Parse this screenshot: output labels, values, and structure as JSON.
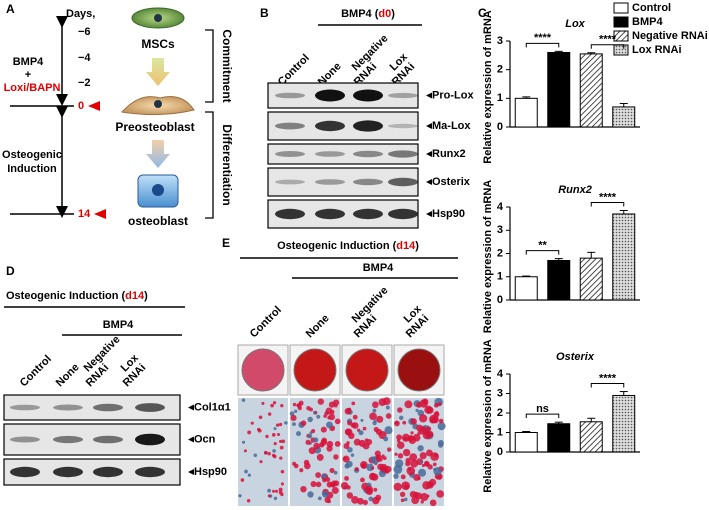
{
  "panel_a": {
    "label": "A",
    "days_title": "Days,",
    "days": [
      "−6",
      "−4",
      "−2",
      "0",
      "14"
    ],
    "treatment": [
      "BMP4",
      "+",
      "Loxi/BAPN"
    ],
    "induction": [
      "Osteogenic",
      "Induction"
    ],
    "cells": [
      "MSCs",
      "Preosteoblast",
      "osteoblast"
    ],
    "stages": [
      "Commitment",
      "Differentiation"
    ]
  },
  "panel_b": {
    "label": "B",
    "header": {
      "text": "BMP4 (",
      "highlight": "d0",
      "close": ")"
    },
    "columns": [
      [
        "Control"
      ],
      [
        "None"
      ],
      [
        "Negative",
        "RNAi"
      ],
      [
        "Lox",
        "RNAi"
      ]
    ],
    "rows": [
      "Pro-Lox",
      "Ma-Lox",
      "Runx2",
      "Osterix",
      "Hsp90"
    ]
  },
  "panel_c": {
    "label": "C",
    "legend": [
      {
        "name": "Control",
        "fill": "#ffffff"
      },
      {
        "name": "BMP4",
        "fill": "#000000"
      },
      {
        "name": "Negative RNAi",
        "fill": "hatch"
      },
      {
        "name": "Lox RNAi",
        "fill": "dots"
      }
    ]
  },
  "chart_data": [
    {
      "type": "bar",
      "title": "Lox",
      "ylabel": "Relative expression of mRNA",
      "values": [
        1.0,
        2.6,
        2.55,
        0.7
      ],
      "errors": [
        0.05,
        0.04,
        0.04,
        0.12
      ],
      "ylim": [
        0,
        3
      ],
      "yticks": [
        0,
        1,
        2,
        3
      ],
      "annotations": [
        "****",
        "****"
      ]
    },
    {
      "type": "bar",
      "title": "Runx2",
      "ylabel": "Relative expression of mRNA",
      "values": [
        1.0,
        1.7,
        1.8,
        3.7
      ],
      "errors": [
        0.03,
        0.08,
        0.25,
        0.15
      ],
      "ylim": [
        0,
        4
      ],
      "yticks": [
        0,
        1,
        2,
        3,
        4
      ],
      "annotations": [
        "**",
        "****"
      ]
    },
    {
      "type": "bar",
      "title": "Osterix",
      "ylabel": "Relative expression of mRNA",
      "values": [
        1.0,
        1.45,
        1.55,
        2.9
      ],
      "errors": [
        0.05,
        0.08,
        0.18,
        0.2
      ],
      "ylim": [
        0,
        4
      ],
      "yticks": [
        0,
        1,
        2,
        3,
        4
      ],
      "annotations": [
        "ns",
        "****"
      ]
    }
  ],
  "panel_d": {
    "label": "D",
    "header": {
      "text": "Osteogenic Induction (",
      "highlight": "d14",
      "close": ")"
    },
    "group": "BMP4",
    "columns": [
      [
        "Control"
      ],
      [
        "None"
      ],
      [
        "Negative",
        "RNAi"
      ],
      [
        "Lox",
        "RNAi"
      ]
    ],
    "rows": [
      "Col1α1",
      "Ocn",
      "Hsp90"
    ]
  },
  "panel_e": {
    "label": "E",
    "header": {
      "text": "Osteogenic Induction (",
      "highlight": "d14",
      "close": ")"
    },
    "group": "BMP4",
    "columns": [
      [
        "Control"
      ],
      [
        "None"
      ],
      [
        "Negative",
        "RNAi"
      ],
      [
        "Lox",
        "RNAi"
      ]
    ]
  }
}
